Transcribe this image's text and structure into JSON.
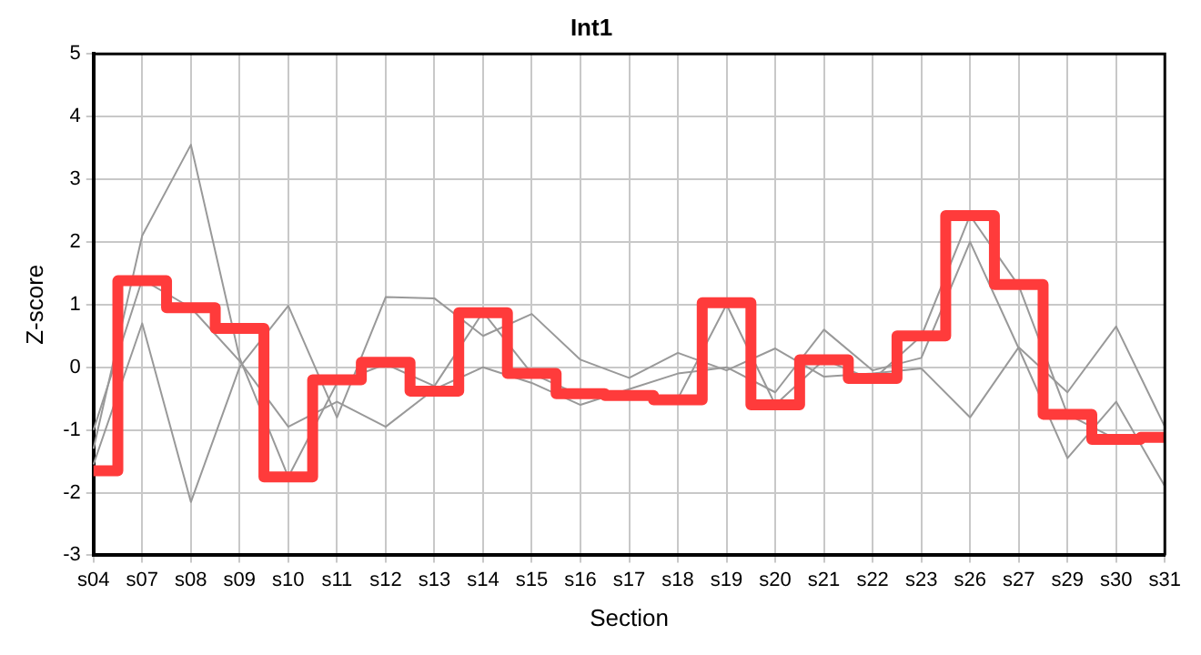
{
  "chart_data": {
    "type": "line",
    "title": "Int1",
    "xlabel": "Section",
    "ylabel": "Z-score",
    "categories": [
      "s04",
      "s07",
      "s08",
      "s09",
      "s10",
      "s11",
      "s12",
      "s13",
      "s14",
      "s15",
      "s16",
      "s17",
      "s18",
      "s19",
      "s20",
      "s21",
      "s22",
      "s23",
      "s26",
      "s27",
      "s29",
      "s30",
      "s31"
    ],
    "series": [
      {
        "color": "#999999",
        "values": [
          -1.3,
          2.1,
          3.55,
          0.15,
          -1.75,
          -0.25,
          0.05,
          -0.3,
          0.88,
          -0.1,
          -0.45,
          -0.45,
          -0.5,
          1.0,
          -0.6,
          0.12,
          -0.2,
          0.5,
          2.42,
          1.3,
          -0.75,
          -1.15,
          -1.15
        ]
      },
      {
        "color": "#999999",
        "values": [
          -1.55,
          0.7,
          -2.15,
          0.0,
          0.98,
          -0.8,
          1.12,
          1.1,
          0.5,
          0.85,
          0.12,
          -0.17,
          0.23,
          -0.05,
          0.3,
          -0.15,
          -0.1,
          -0.02,
          -0.8,
          0.32,
          -0.4,
          0.65,
          -0.95
        ]
      },
      {
        "color": "#999999",
        "values": [
          -1.0,
          1.4,
          0.95,
          0.1,
          -0.95,
          -0.55,
          -0.95,
          -0.35,
          0.0,
          -0.25,
          -0.6,
          -0.35,
          -0.1,
          0.0,
          -0.4,
          0.6,
          -0.05,
          0.15,
          2.0,
          0.3,
          -1.45,
          -0.55,
          -1.9
        ]
      },
      {
        "type": "step",
        "color": "#ff3b3b",
        "values": [
          -1.65,
          1.38,
          0.95,
          0.62,
          -1.75,
          -0.2,
          0.08,
          -0.38,
          0.87,
          -0.1,
          -0.42,
          -0.45,
          -0.52,
          1.03,
          -0.6,
          0.12,
          -0.18,
          0.5,
          2.42,
          1.32,
          -0.75,
          -1.15,
          -1.12
        ]
      }
    ],
    "ylim": [
      -3,
      5
    ],
    "yticks": [
      -3,
      -2,
      -1,
      0,
      1,
      2,
      3,
      4,
      5
    ],
    "grid": true,
    "legend": false
  }
}
